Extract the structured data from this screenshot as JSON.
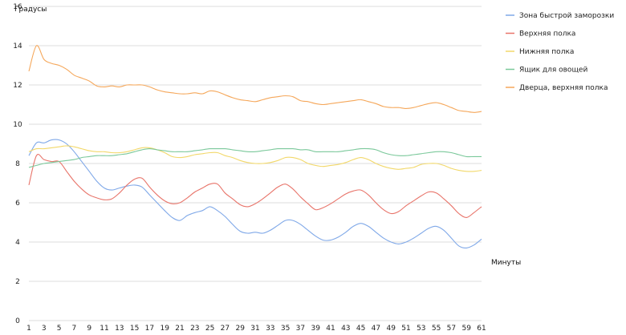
{
  "chart_data": {
    "type": "line",
    "ylabel": "Градусы",
    "xlabel": "Минуты",
    "ylim": [
      0,
      16
    ],
    "yticks": [
      0,
      2,
      4,
      6,
      8,
      10,
      12,
      14,
      16
    ],
    "grid": true,
    "legend_position": "right",
    "x": [
      1,
      2,
      3,
      4,
      5,
      6,
      7,
      8,
      9,
      10,
      11,
      12,
      13,
      14,
      15,
      16,
      17,
      18,
      19,
      20,
      21,
      22,
      23,
      24,
      25,
      26,
      27,
      28,
      29,
      30,
      31,
      32,
      33,
      34,
      35,
      36,
      37,
      38,
      39,
      40,
      41,
      42,
      43,
      44,
      45,
      46,
      47,
      48,
      49,
      50,
      51,
      52,
      53,
      54,
      55,
      56,
      57,
      58,
      59,
      60,
      61
    ],
    "xtick_labels": [
      "1",
      "3",
      "5",
      "7",
      "9",
      "11",
      "13",
      "15",
      "17",
      "19",
      "21",
      "23",
      "25",
      "27",
      "29",
      "31",
      "33",
      "35",
      "37",
      "39",
      "41",
      "43",
      "45",
      "47",
      "49",
      "51",
      "53",
      "55",
      "57",
      "59",
      "61"
    ],
    "series": [
      {
        "name": "Зона быстрой заморозки",
        "color": "#7fa8e8",
        "values": [
          8.4,
          9.05,
          9.05,
          9.2,
          9.2,
          9.0,
          8.6,
          8.1,
          7.6,
          7.1,
          6.75,
          6.65,
          6.75,
          6.85,
          6.9,
          6.8,
          6.4,
          6.0,
          5.6,
          5.25,
          5.1,
          5.35,
          5.5,
          5.6,
          5.8,
          5.6,
          5.3,
          4.9,
          4.55,
          4.45,
          4.5,
          4.45,
          4.6,
          4.85,
          5.1,
          5.1,
          4.9,
          4.6,
          4.3,
          4.1,
          4.1,
          4.25,
          4.5,
          4.8,
          4.95,
          4.8,
          4.5,
          4.2,
          4.0,
          3.9,
          4.0,
          4.2,
          4.45,
          4.7,
          4.8,
          4.6,
          4.2,
          3.8,
          3.7,
          3.85,
          4.15
        ]
      },
      {
        "name": "Верхняя полка",
        "color": "#e8746a",
        "values": [
          6.9,
          8.4,
          8.2,
          8.1,
          8.1,
          7.6,
          7.1,
          6.7,
          6.4,
          6.25,
          6.15,
          6.2,
          6.5,
          6.9,
          7.2,
          7.25,
          6.8,
          6.4,
          6.1,
          5.95,
          6.0,
          6.25,
          6.55,
          6.75,
          6.95,
          6.95,
          6.5,
          6.2,
          5.9,
          5.8,
          5.95,
          6.2,
          6.5,
          6.8,
          6.95,
          6.7,
          6.3,
          5.95,
          5.65,
          5.75,
          5.95,
          6.2,
          6.45,
          6.6,
          6.65,
          6.4,
          6.0,
          5.65,
          5.45,
          5.55,
          5.85,
          6.1,
          6.35,
          6.55,
          6.5,
          6.2,
          5.85,
          5.45,
          5.25,
          5.5,
          5.8
        ]
      },
      {
        "name": "Нижняя полка",
        "color": "#f2d86a",
        "values": [
          8.6,
          8.75,
          8.75,
          8.8,
          8.85,
          8.9,
          8.85,
          8.75,
          8.65,
          8.6,
          8.6,
          8.55,
          8.55,
          8.6,
          8.7,
          8.8,
          8.8,
          8.7,
          8.55,
          8.35,
          8.3,
          8.35,
          8.45,
          8.5,
          8.55,
          8.55,
          8.4,
          8.3,
          8.15,
          8.05,
          8.0,
          8.0,
          8.05,
          8.15,
          8.3,
          8.3,
          8.2,
          8.0,
          7.9,
          7.85,
          7.9,
          7.95,
          8.05,
          8.2,
          8.3,
          8.2,
          8.0,
          7.85,
          7.75,
          7.7,
          7.75,
          7.8,
          7.95,
          8.0,
          8.0,
          7.9,
          7.75,
          7.65,
          7.6,
          7.6,
          7.65
        ]
      },
      {
        "name": "Ящик для овощей",
        "color": "#7ac89a",
        "values": [
          7.8,
          7.9,
          8.0,
          8.05,
          8.1,
          8.15,
          8.2,
          8.3,
          8.35,
          8.4,
          8.4,
          8.4,
          8.45,
          8.5,
          8.6,
          8.7,
          8.75,
          8.7,
          8.65,
          8.6,
          8.6,
          8.6,
          8.65,
          8.7,
          8.75,
          8.75,
          8.75,
          8.7,
          8.65,
          8.6,
          8.6,
          8.65,
          8.7,
          8.75,
          8.75,
          8.75,
          8.7,
          8.7,
          8.6,
          8.6,
          8.6,
          8.6,
          8.65,
          8.7,
          8.75,
          8.75,
          8.7,
          8.55,
          8.45,
          8.4,
          8.4,
          8.45,
          8.5,
          8.55,
          8.6,
          8.6,
          8.55,
          8.45,
          8.35,
          8.35,
          8.35
        ]
      },
      {
        "name": "Дверца, верхняя полка",
        "color": "#f5a75a",
        "values": [
          12.7,
          14.0,
          13.3,
          13.1,
          13.0,
          12.8,
          12.5,
          12.35,
          12.2,
          11.95,
          11.9,
          11.95,
          11.9,
          12.0,
          12.0,
          12.0,
          11.9,
          11.75,
          11.65,
          11.6,
          11.55,
          11.55,
          11.6,
          11.55,
          11.7,
          11.65,
          11.5,
          11.35,
          11.25,
          11.2,
          11.15,
          11.25,
          11.35,
          11.4,
          11.45,
          11.4,
          11.2,
          11.15,
          11.05,
          11.0,
          11.05,
          11.1,
          11.15,
          11.2,
          11.25,
          11.15,
          11.05,
          10.9,
          10.85,
          10.85,
          10.8,
          10.85,
          10.95,
          11.05,
          11.1,
          11.0,
          10.85,
          10.7,
          10.65,
          10.6,
          10.65
        ]
      }
    ]
  }
}
